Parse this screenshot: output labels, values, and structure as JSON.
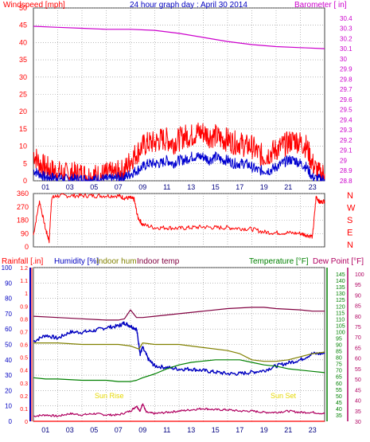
{
  "colors": {
    "frame": "#404040",
    "grid": "#909090",
    "wind": "#ff0000",
    "gust": "#0000d0",
    "baro": "#cc00cc",
    "rain": "#ff0000",
    "humidity": "#0000c0",
    "indoor_hum": "#808000",
    "indoor_temp": "#800040",
    "temperature": "#008000",
    "dew_point": "#b00060",
    "sun": "#e6d800",
    "title": "#0000c0"
  },
  "chart_data": [
    {
      "id": "wind_baro",
      "type": "line",
      "title": "24 hour graph day : April 30 2014",
      "ylabel_left": "Windspeed [mph]",
      "ylabel_right": "Barometer [ in]",
      "ylim_left": [
        0,
        50
      ],
      "ylim_right": [
        28.8,
        30.5
      ],
      "y_ticks_left": [
        "0",
        "5",
        "10",
        "15",
        "20",
        "25",
        "30",
        "35",
        "40",
        "45",
        "50"
      ],
      "y_ticks_right": [
        "28.8",
        "28.9",
        "29",
        "29.1",
        "29.2",
        "29.3",
        "29.4",
        "29.5",
        "29.6",
        "29.7",
        "29.8",
        "29.9",
        "30",
        "30.1",
        "30.2",
        "30.3",
        "30.4"
      ],
      "x_tick_labels": [
        "01",
        "03",
        "05",
        "07",
        "09",
        "11",
        "13",
        "15",
        "17",
        "19",
        "21",
        "23"
      ],
      "series": [
        {
          "name": "Windspeed",
          "axis": "left",
          "color": "wind",
          "x": [
            0,
            0.5,
            1,
            1.5,
            2,
            2.5,
            3,
            3.5,
            4,
            4.5,
            5,
            5.5,
            6,
            6.5,
            7,
            7.5,
            8,
            8.5,
            9,
            9.5,
            10,
            10.5,
            11,
            11.5,
            12,
            12.5,
            13,
            13.5,
            14,
            14.5,
            15,
            15.5,
            16,
            16.5,
            17,
            17.5,
            18,
            18.5,
            19,
            19.5,
            20,
            20.5,
            21,
            21.5,
            22,
            22.5,
            23,
            23.5,
            24
          ],
          "y": [
            8,
            5,
            4,
            3,
            2.5,
            2,
            2,
            2,
            2,
            1.5,
            1.5,
            1.5,
            2,
            2,
            2.5,
            3,
            6,
            8,
            10,
            11,
            11,
            12,
            12,
            11,
            12,
            13,
            13,
            14,
            14,
            13,
            13,
            12,
            12,
            11,
            11,
            10,
            10,
            8,
            7,
            8,
            9,
            10,
            11,
            12,
            11,
            10,
            5,
            2,
            2
          ]
        },
        {
          "name": "Gust",
          "axis": "left",
          "color": "gust",
          "x": [
            0,
            0.5,
            1,
            1.5,
            2,
            2.5,
            3,
            3.5,
            4,
            4.5,
            5,
            5.5,
            6,
            6.5,
            7,
            7.5,
            8,
            8.5,
            9,
            9.5,
            10,
            10.5,
            11,
            11.5,
            12,
            12.5,
            13,
            13.5,
            14,
            14.5,
            15,
            15.5,
            16,
            16.5,
            17,
            17.5,
            18,
            18.5,
            19,
            19.5,
            20,
            20.5,
            21,
            21.5,
            22,
            22.5,
            23,
            23.5,
            24
          ],
          "y": [
            3,
            2,
            1,
            1,
            1,
            0.5,
            0.5,
            0.5,
            0.5,
            0.5,
            0.5,
            0.5,
            0.5,
            0.5,
            1,
            1,
            2,
            3,
            4,
            5,
            5,
            5,
            6,
            5,
            6,
            6,
            7,
            7,
            7,
            6,
            7,
            6,
            6,
            5,
            5,
            5,
            4,
            3,
            3,
            3,
            4,
            5,
            6,
            6,
            5,
            4,
            1,
            0.5,
            0.5
          ]
        },
        {
          "name": "Barometer",
          "axis": "right",
          "color": "baro",
          "x": [
            0,
            2,
            4,
            6,
            8,
            10,
            12,
            14,
            16,
            18,
            20,
            22,
            24
          ],
          "y": [
            30.32,
            30.31,
            30.3,
            30.29,
            30.29,
            30.28,
            30.25,
            30.21,
            30.17,
            30.14,
            30.12,
            30.11,
            30.1
          ]
        }
      ]
    },
    {
      "id": "wind_direction",
      "type": "scatter",
      "ylim": [
        0,
        360
      ],
      "y_ticks": [
        "0",
        "90",
        "180",
        "270",
        "360"
      ],
      "compass_labels": [
        "N",
        "W",
        "S",
        "E",
        "N"
      ],
      "series": [
        {
          "name": "Direction",
          "color": "wind",
          "x": [
            0,
            0.5,
            1,
            1.3,
            1.5,
            2,
            3,
            4,
            5,
            6,
            7,
            7.5,
            8,
            8.3,
            8.6,
            9,
            10,
            11,
            12,
            13,
            14,
            15,
            16,
            17,
            18,
            19,
            20,
            21,
            22,
            22.5,
            23,
            23.3,
            23.6,
            24
          ],
          "y": [
            80,
            310,
            120,
            40,
            330,
            345,
            345,
            345,
            345,
            345,
            345,
            330,
            330,
            320,
            200,
            150,
            130,
            130,
            125,
            130,
            135,
            130,
            130,
            125,
            120,
            100,
            95,
            95,
            90,
            80,
            70,
            340,
            300,
            310
          ]
        }
      ]
    },
    {
      "id": "temp_hum_rain",
      "type": "line",
      "legend": [
        "Rainfall [.in]",
        "Humidity [%]",
        "Indoor hum",
        "Indoor temp",
        "Temperature [°F]",
        "Dew Point [°F]"
      ],
      "ylim_rain": [
        0,
        1.2
      ],
      "ylim_humidity": [
        0,
        100
      ],
      "ylim_temp": [
        30,
        145
      ],
      "y_ticks_rain": [
        "0",
        "0.1",
        "0.2",
        "0.3",
        "0.4",
        "0.5",
        "0.6",
        "0.7",
        "0.8",
        "0.9",
        "1",
        "1.1",
        "1.2"
      ],
      "y_ticks_humidity": [
        "0",
        "10",
        "20",
        "30",
        "40",
        "50",
        "60",
        "70",
        "80",
        "90",
        "100"
      ],
      "y_ticks_temp_green": [
        "35",
        "40",
        "45",
        "50",
        "55",
        "60",
        "65",
        "70",
        "75",
        "80",
        "85",
        "90",
        "95",
        "100",
        "105",
        "110",
        "115",
        "120",
        "125",
        "130",
        "135",
        "140",
        "145"
      ],
      "y_ticks_temp_dew": [
        "30",
        "35",
        "40",
        "45",
        "50",
        "55",
        "60",
        "65",
        "70",
        "75",
        "80",
        "85",
        "90",
        "95",
        "100"
      ],
      "annotations": [
        "Sun Rise",
        "Sun Set"
      ],
      "series": [
        {
          "name": "Rainfall",
          "color": "rain",
          "x": [
            0,
            24
          ],
          "y": [
            0,
            0
          ]
        },
        {
          "name": "Humidity",
          "color": "humidity",
          "x": [
            0,
            1,
            2,
            3,
            4,
            5,
            6,
            7,
            7.5,
            8,
            8.5,
            8.8,
            9,
            9.5,
            10,
            11,
            12,
            13,
            14,
            15,
            16,
            17,
            18,
            19,
            20,
            21,
            22,
            23,
            24
          ],
          "y": [
            52,
            56,
            54,
            58,
            58,
            59,
            61,
            62,
            64,
            62,
            60,
            44,
            48,
            40,
            36,
            35,
            34,
            34,
            33,
            32,
            31,
            31,
            32,
            33,
            36,
            38,
            40,
            44,
            44
          ]
        },
        {
          "name": "Indoor hum",
          "color": "indoor_hum",
          "x": [
            0,
            2,
            4,
            6,
            7,
            8,
            8.7,
            9,
            10,
            12,
            14,
            16,
            17,
            18,
            19,
            20,
            21,
            22,
            23,
            24
          ],
          "y": [
            51,
            51,
            50,
            50,
            50,
            49,
            47,
            51,
            50,
            50,
            48,
            46,
            44,
            40,
            39,
            39,
            40,
            42,
            44,
            45
          ]
        },
        {
          "name": "Indoor temp",
          "color": "indoor_temp",
          "x": [
            0,
            2,
            4,
            6,
            7,
            7.5,
            8,
            8.5,
            9,
            10,
            12,
            14,
            16,
            18,
            19,
            20,
            22,
            23,
            24
          ],
          "y": [
            112,
            111,
            110,
            109,
            109,
            110,
            117,
            111,
            111,
            112,
            114,
            116,
            118,
            119,
            119,
            118,
            117,
            116,
            116
          ]
        },
        {
          "name": "Temperature",
          "color": "temperature",
          "x": [
            0,
            1,
            2,
            4,
            6,
            7,
            8,
            8.5,
            9,
            10,
            11,
            12,
            13,
            14,
            15,
            16,
            17,
            18,
            19,
            20,
            21,
            22,
            23,
            24
          ],
          "y": [
            64,
            63,
            63,
            62,
            62,
            61,
            61,
            62,
            64,
            67,
            71,
            74,
            76,
            77,
            78,
            78,
            78,
            76,
            74,
            73,
            71,
            70,
            69,
            68
          ]
        },
        {
          "name": "Dew Point",
          "color": "dew_point",
          "x": [
            0,
            1,
            2,
            3,
            4,
            5,
            6,
            7,
            8,
            8.5,
            8.8,
            9,
            9.3,
            10,
            11,
            12,
            13,
            14,
            15,
            16,
            17,
            18,
            19,
            20,
            21,
            22,
            23,
            24
          ],
          "y": [
            34,
            35,
            34,
            36,
            35,
            36,
            35,
            35,
            38,
            42,
            38,
            44,
            37,
            36,
            37,
            38,
            39,
            40,
            39,
            39,
            38,
            38,
            37,
            37,
            38,
            37,
            37,
            36
          ]
        }
      ]
    }
  ]
}
